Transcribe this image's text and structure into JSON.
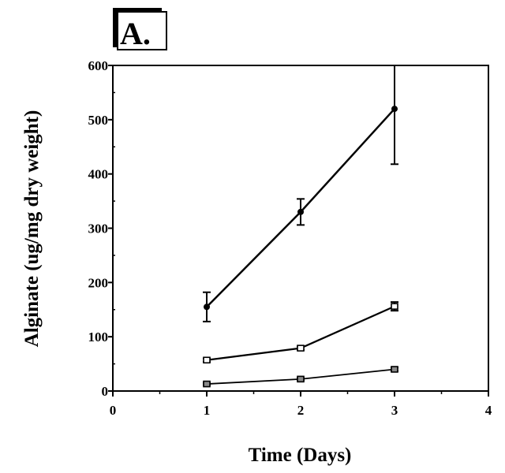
{
  "chart_data": {
    "type": "line",
    "panel_label": "A.",
    "xlabel": "Time (Days)",
    "ylabel": "Alginate (ug/mg dry weight)",
    "xlim": [
      0,
      4
    ],
    "ylim": [
      0,
      600
    ],
    "xticks": [
      "0",
      "1",
      "2",
      "3",
      "4"
    ],
    "yticks": [
      "0",
      "100",
      "200",
      "300",
      "400",
      "500",
      "600"
    ],
    "grid": false,
    "series": [
      {
        "marker": "filled-circle",
        "x": [
          1,
          2,
          3
        ],
        "y": [
          155,
          330,
          520
        ],
        "error": [
          27,
          24,
          102
        ]
      },
      {
        "marker": "open-square",
        "x": [
          1,
          2,
          3
        ],
        "y": [
          57,
          79,
          156
        ],
        "error": [
          3,
          3,
          8
        ]
      },
      {
        "marker": "hatched-square",
        "x": [
          1,
          2,
          3
        ],
        "y": [
          13,
          22,
          40
        ],
        "error": [
          2,
          2,
          3
        ]
      }
    ]
  }
}
